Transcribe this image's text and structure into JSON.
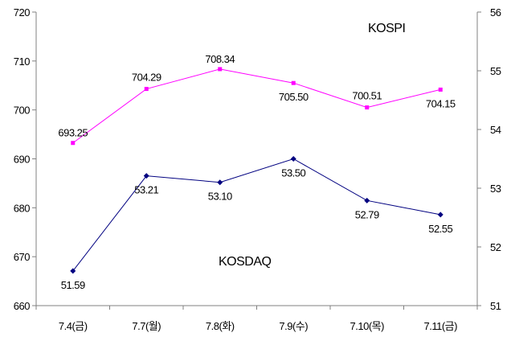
{
  "chart_data": {
    "type": "line",
    "categories": [
      "7.4(금)",
      "7.7(월)",
      "7.8(화)",
      "7.9(수)",
      "7.10(목)",
      "7.11(금)"
    ],
    "series": [
      {
        "name": "KOSPI",
        "axis": "left",
        "color": "#ff00ff",
        "values": [
          693.25,
          704.29,
          708.34,
          705.5,
          700.51,
          704.15
        ],
        "labels": [
          "693.25",
          "704.29",
          "708.34",
          "705.50",
          "700.51",
          "704.15"
        ]
      },
      {
        "name": "KOSDAQ",
        "axis": "right",
        "color": "#000080",
        "values": [
          51.59,
          53.21,
          53.1,
          53.5,
          52.79,
          52.55
        ],
        "labels": [
          "51.59",
          "53.21",
          "53.10",
          "53.50",
          "52.79",
          "52.55"
        ]
      }
    ],
    "y_left": {
      "min": 660,
      "max": 720,
      "step": 10,
      "ticks": [
        "660",
        "670",
        "680",
        "690",
        "700",
        "710",
        "720"
      ]
    },
    "y_right": {
      "min": 51,
      "max": 56,
      "step": 1,
      "ticks": [
        "51",
        "52",
        "53",
        "54",
        "55",
        "56"
      ]
    },
    "grid": false,
    "legend": "none"
  }
}
